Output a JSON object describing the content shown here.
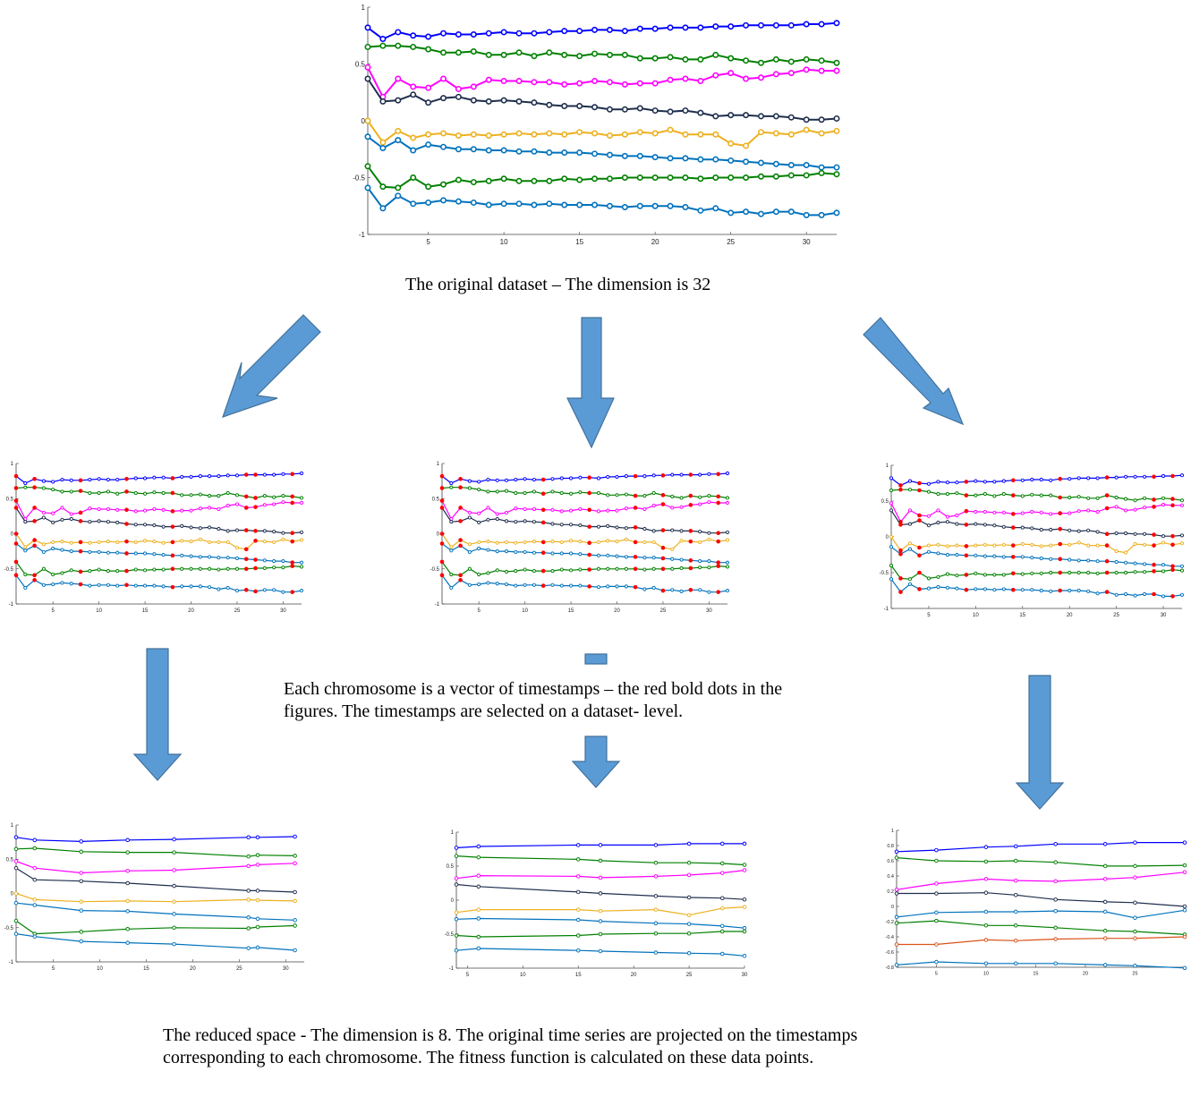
{
  "captions": {
    "top": "The original dataset – The dimension is 32",
    "middle_line1": "Each chromosome is a vector of timestamps – the red bold dots in the",
    "middle_line2": "figures. The timestamps are selected on a dataset- level.",
    "bottom_line1": "The reduced space - The dimension is 8. The original time series are projected on the timestamps",
    "bottom_line2": "corresponding to each chromosome. The fitness function is calculated on these data points."
  },
  "colors": {
    "arrow_fill": "#5b9bd5",
    "arrow_stroke": "#41719c",
    "selected_point": "#ff0000"
  },
  "chart_data": [
    {
      "id": "original",
      "type": "line",
      "xlim": [
        1,
        32
      ],
      "ylim": [
        -1,
        1
      ],
      "x_ticks": [
        5,
        10,
        15,
        20,
        25,
        30
      ],
      "y_ticks": [
        -1,
        -0.5,
        0,
        0.5,
        1
      ],
      "y_tick_labels": [
        "-1",
        "-0.5",
        "0",
        "0.5",
        "1"
      ],
      "x": [
        1,
        2,
        3,
        4,
        5,
        6,
        7,
        8,
        9,
        10,
        11,
        12,
        13,
        14,
        15,
        16,
        17,
        18,
        19,
        20,
        21,
        22,
        23,
        24,
        25,
        26,
        27,
        28,
        29,
        30,
        31,
        32
      ],
      "series": [
        {
          "color": "#0000ff",
          "values": [
            0.82,
            0.72,
            0.78,
            0.75,
            0.74,
            0.77,
            0.76,
            0.76,
            0.77,
            0.78,
            0.77,
            0.77,
            0.78,
            0.79,
            0.79,
            0.8,
            0.8,
            0.79,
            0.81,
            0.81,
            0.82,
            0.82,
            0.82,
            0.83,
            0.83,
            0.84,
            0.84,
            0.84,
            0.84,
            0.85,
            0.85,
            0.86
          ]
        },
        {
          "color": "#008000",
          "values": [
            0.65,
            0.66,
            0.66,
            0.65,
            0.63,
            0.6,
            0.6,
            0.61,
            0.58,
            0.58,
            0.6,
            0.57,
            0.6,
            0.58,
            0.57,
            0.59,
            0.58,
            0.58,
            0.55,
            0.55,
            0.56,
            0.54,
            0.54,
            0.58,
            0.55,
            0.53,
            0.51,
            0.54,
            0.52,
            0.54,
            0.53,
            0.51
          ]
        },
        {
          "color": "#ff00ff",
          "values": [
            0.47,
            0.21,
            0.37,
            0.3,
            0.29,
            0.37,
            0.28,
            0.3,
            0.36,
            0.35,
            0.35,
            0.34,
            0.34,
            0.32,
            0.33,
            0.35,
            0.34,
            0.32,
            0.33,
            0.33,
            0.36,
            0.37,
            0.35,
            0.4,
            0.42,
            0.37,
            0.38,
            0.41,
            0.42,
            0.45,
            0.44,
            0.44
          ]
        },
        {
          "color": "#1f2e4d",
          "values": [
            0.37,
            0.17,
            0.18,
            0.23,
            0.16,
            0.2,
            0.21,
            0.18,
            0.17,
            0.18,
            0.17,
            0.16,
            0.14,
            0.13,
            0.13,
            0.12,
            0.1,
            0.1,
            0.11,
            0.09,
            0.08,
            0.09,
            0.07,
            0.04,
            0.05,
            0.05,
            0.04,
            0.04,
            0.03,
            0.01,
            0.01,
            0.02
          ]
        },
        {
          "color": "#edb120",
          "values": [
            0.0,
            -0.19,
            -0.09,
            -0.15,
            -0.12,
            -0.11,
            -0.13,
            -0.12,
            -0.13,
            -0.12,
            -0.11,
            -0.12,
            -0.11,
            -0.12,
            -0.1,
            -0.11,
            -0.13,
            -0.12,
            -0.1,
            -0.11,
            -0.08,
            -0.12,
            -0.12,
            -0.12,
            -0.2,
            -0.22,
            -0.1,
            -0.11,
            -0.12,
            -0.08,
            -0.11,
            -0.09
          ]
        },
        {
          "color": "#0072bd",
          "values": [
            -0.14,
            -0.24,
            -0.17,
            -0.26,
            -0.21,
            -0.23,
            -0.25,
            -0.25,
            -0.26,
            -0.26,
            -0.27,
            -0.27,
            -0.28,
            -0.28,
            -0.28,
            -0.29,
            -0.3,
            -0.31,
            -0.31,
            -0.32,
            -0.33,
            -0.33,
            -0.34,
            -0.34,
            -0.35,
            -0.36,
            -0.37,
            -0.38,
            -0.39,
            -0.39,
            -0.41,
            -0.41
          ]
        },
        {
          "color": "#008000",
          "values": [
            -0.4,
            -0.58,
            -0.59,
            -0.5,
            -0.58,
            -0.56,
            -0.52,
            -0.54,
            -0.53,
            -0.51,
            -0.53,
            -0.53,
            -0.53,
            -0.51,
            -0.52,
            -0.51,
            -0.51,
            -0.5,
            -0.5,
            -0.5,
            -0.5,
            -0.5,
            -0.51,
            -0.5,
            -0.5,
            -0.5,
            -0.49,
            -0.49,
            -0.48,
            -0.48,
            -0.46,
            -0.47
          ]
        },
        {
          "color": "#0072bd",
          "values": [
            -0.59,
            -0.77,
            -0.66,
            -0.73,
            -0.72,
            -0.7,
            -0.71,
            -0.72,
            -0.74,
            -0.73,
            -0.73,
            -0.74,
            -0.73,
            -0.74,
            -0.74,
            -0.74,
            -0.75,
            -0.76,
            -0.75,
            -0.75,
            -0.75,
            -0.76,
            -0.79,
            -0.77,
            -0.81,
            -0.8,
            -0.82,
            -0.8,
            -0.8,
            -0.83,
            -0.83,
            -0.81
          ]
        }
      ]
    },
    {
      "id": "chromosome-1",
      "type": "line",
      "xlim": [
        1,
        32
      ],
      "ylim": [
        -1,
        1
      ],
      "x_ticks": [
        5,
        10,
        15,
        20,
        25,
        30
      ],
      "y_ticks": [
        -1,
        -0.5,
        0,
        0.5,
        1
      ],
      "y_tick_labels": [
        "-1",
        "-0.5",
        "0",
        "0.5",
        "1"
      ],
      "selected_x": [
        1,
        3,
        8,
        13,
        18,
        26,
        27,
        31
      ],
      "series_ref": "original"
    },
    {
      "id": "chromosome-2",
      "type": "line",
      "xlim": [
        1,
        32
      ],
      "ylim": [
        -1,
        1
      ],
      "x_ticks": [
        5,
        10,
        15,
        20,
        25,
        30
      ],
      "y_ticks": [
        -1,
        -0.5,
        0,
        0.5,
        1
      ],
      "y_tick_labels": [
        "-1",
        "-0.5",
        "0",
        "0.5",
        "1"
      ],
      "selected_x": [
        1,
        3,
        12,
        17,
        22,
        25,
        28,
        31
      ],
      "series_ref": "original"
    },
    {
      "id": "chromosome-3",
      "type": "line",
      "xlim": [
        1,
        32
      ],
      "ylim": [
        -1,
        1
      ],
      "x_ticks": [
        5,
        10,
        15,
        20,
        25,
        30
      ],
      "y_ticks": [
        -1,
        -0.5,
        0,
        0.5,
        1
      ],
      "y_tick_labels": [
        "-1",
        "-0.5",
        "0",
        "0.5",
        "1"
      ],
      "selected_x": [
        2,
        4,
        9,
        14,
        19,
        24,
        29,
        31
      ],
      "series_ref": "original"
    },
    {
      "id": "reduced-1",
      "type": "line",
      "xlim": [
        1,
        32
      ],
      "ylim": [
        -1,
        1
      ],
      "x_ticks": [
        5,
        10,
        15,
        20,
        25,
        30
      ],
      "y_ticks": [
        -1,
        -0.5,
        0,
        0.5,
        1
      ],
      "y_tick_labels": [
        "-1",
        "-0.5",
        "0",
        "0.5",
        "1"
      ],
      "x": [
        1,
        3,
        8,
        13,
        18,
        26,
        27,
        31
      ],
      "series": [
        {
          "color": "#0000ff",
          "values": [
            0.82,
            0.78,
            0.76,
            0.78,
            0.79,
            0.82,
            0.82,
            0.83
          ]
        },
        {
          "color": "#008000",
          "values": [
            0.65,
            0.66,
            0.61,
            0.6,
            0.6,
            0.54,
            0.56,
            0.55
          ]
        },
        {
          "color": "#ff00ff",
          "values": [
            0.47,
            0.37,
            0.3,
            0.33,
            0.34,
            0.4,
            0.42,
            0.44
          ]
        },
        {
          "color": "#1f2e4d",
          "values": [
            0.37,
            0.2,
            0.18,
            0.15,
            0.11,
            0.04,
            0.04,
            0.02
          ]
        },
        {
          "color": "#edb120",
          "values": [
            0.0,
            -0.09,
            -0.12,
            -0.11,
            -0.12,
            -0.09,
            -0.1,
            -0.11
          ]
        },
        {
          "color": "#0072bd",
          "values": [
            -0.14,
            -0.17,
            -0.25,
            -0.26,
            -0.3,
            -0.35,
            -0.37,
            -0.39
          ]
        },
        {
          "color": "#008000",
          "values": [
            -0.4,
            -0.59,
            -0.56,
            -0.52,
            -0.5,
            -0.51,
            -0.49,
            -0.47
          ]
        },
        {
          "color": "#0072bd",
          "values": [
            -0.59,
            -0.63,
            -0.7,
            -0.72,
            -0.74,
            -0.8,
            -0.79,
            -0.83
          ]
        }
      ]
    },
    {
      "id": "reduced-2",
      "type": "line",
      "xlim": [
        4,
        30
      ],
      "ylim": [
        -1,
        1
      ],
      "x_ticks": [
        5,
        10,
        15,
        20,
        25,
        30
      ],
      "y_ticks": [
        -1,
        -0.5,
        0,
        0.5,
        1
      ],
      "y_tick_labels": [
        "-1",
        "-0.5",
        "0",
        "0.5",
        "1"
      ],
      "x": [
        4,
        6,
        15,
        17,
        22,
        25,
        28,
        30
      ],
      "series": [
        {
          "color": "#0000ff",
          "values": [
            0.77,
            0.79,
            0.81,
            0.81,
            0.81,
            0.83,
            0.83,
            0.83
          ]
        },
        {
          "color": "#008000",
          "values": [
            0.65,
            0.63,
            0.6,
            0.58,
            0.55,
            0.55,
            0.54,
            0.52
          ]
        },
        {
          "color": "#ff00ff",
          "values": [
            0.32,
            0.36,
            0.35,
            0.33,
            0.35,
            0.37,
            0.4,
            0.44
          ]
        },
        {
          "color": "#1f2e4d",
          "values": [
            0.23,
            0.2,
            0.12,
            0.1,
            0.06,
            0.04,
            0.03,
            0.01
          ]
        },
        {
          "color": "#edb120",
          "values": [
            -0.18,
            -0.14,
            -0.14,
            -0.16,
            -0.14,
            -0.22,
            -0.12,
            -0.1
          ]
        },
        {
          "color": "#0072bd",
          "values": [
            -0.28,
            -0.27,
            -0.29,
            -0.31,
            -0.34,
            -0.35,
            -0.38,
            -0.41
          ]
        },
        {
          "color": "#008000",
          "values": [
            -0.52,
            -0.54,
            -0.52,
            -0.5,
            -0.49,
            -0.49,
            -0.46,
            -0.46
          ]
        },
        {
          "color": "#0072bd",
          "values": [
            -0.74,
            -0.71,
            -0.74,
            -0.75,
            -0.77,
            -0.78,
            -0.79,
            -0.82
          ]
        }
      ]
    },
    {
      "id": "reduced-3",
      "type": "line",
      "xlim": [
        1,
        30
      ],
      "ylim": [
        -0.8,
        1
      ],
      "x_ticks": [
        5,
        10,
        15,
        20,
        25
      ],
      "y_ticks": [
        -0.8,
        -0.6,
        -0.4,
        -0.2,
        0,
        0.2,
        0.4,
        0.6,
        0.8,
        1
      ],
      "y_tick_labels": [
        "-0.8",
        "-0.6",
        "-0.4",
        "-0.2",
        "0",
        "0.2",
        "0.4",
        "0.6",
        "0.8",
        "1"
      ],
      "x": [
        1,
        5,
        10,
        13,
        17,
        22,
        25,
        30
      ],
      "series": [
        {
          "color": "#0000ff",
          "values": [
            0.72,
            0.74,
            0.78,
            0.79,
            0.82,
            0.82,
            0.84,
            0.84
          ]
        },
        {
          "color": "#008000",
          "values": [
            0.64,
            0.6,
            0.59,
            0.6,
            0.58,
            0.53,
            0.53,
            0.54
          ]
        },
        {
          "color": "#ff00ff",
          "values": [
            0.22,
            0.3,
            0.36,
            0.34,
            0.33,
            0.36,
            0.38,
            0.45
          ]
        },
        {
          "color": "#1f2e4d",
          "values": [
            0.17,
            0.17,
            0.18,
            0.15,
            0.09,
            0.06,
            0.05,
            0.0
          ]
        },
        {
          "color": "#0072bd",
          "values": [
            -0.14,
            -0.08,
            -0.07,
            -0.07,
            -0.06,
            -0.07,
            -0.15,
            -0.05
          ]
        },
        {
          "color": "#008000",
          "values": [
            -0.22,
            -0.19,
            -0.25,
            -0.25,
            -0.28,
            -0.32,
            -0.33,
            -0.37
          ]
        },
        {
          "color": "#d95319",
          "values": [
            -0.5,
            -0.5,
            -0.44,
            -0.45,
            -0.43,
            -0.42,
            -0.42,
            -0.4
          ]
        },
        {
          "color": "#0072bd",
          "values": [
            -0.77,
            -0.73,
            -0.75,
            -0.75,
            -0.75,
            -0.77,
            -0.78,
            -0.81
          ]
        }
      ]
    }
  ]
}
